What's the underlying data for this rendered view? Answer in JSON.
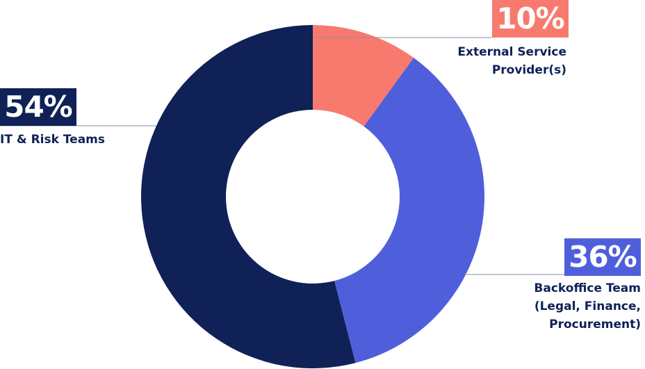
{
  "chart_data": {
    "type": "donut",
    "categories": [
      "External Service Provider(s)",
      "Backoffice Team (Legal, Finance, Procurement)",
      "IT & Risk Teams"
    ],
    "values": [
      10,
      36,
      54
    ],
    "value_labels": [
      "10%",
      "36%",
      "54%"
    ],
    "colors": [
      "#f87a6e",
      "#4f5fdb",
      "#0f2156"
    ]
  }
}
